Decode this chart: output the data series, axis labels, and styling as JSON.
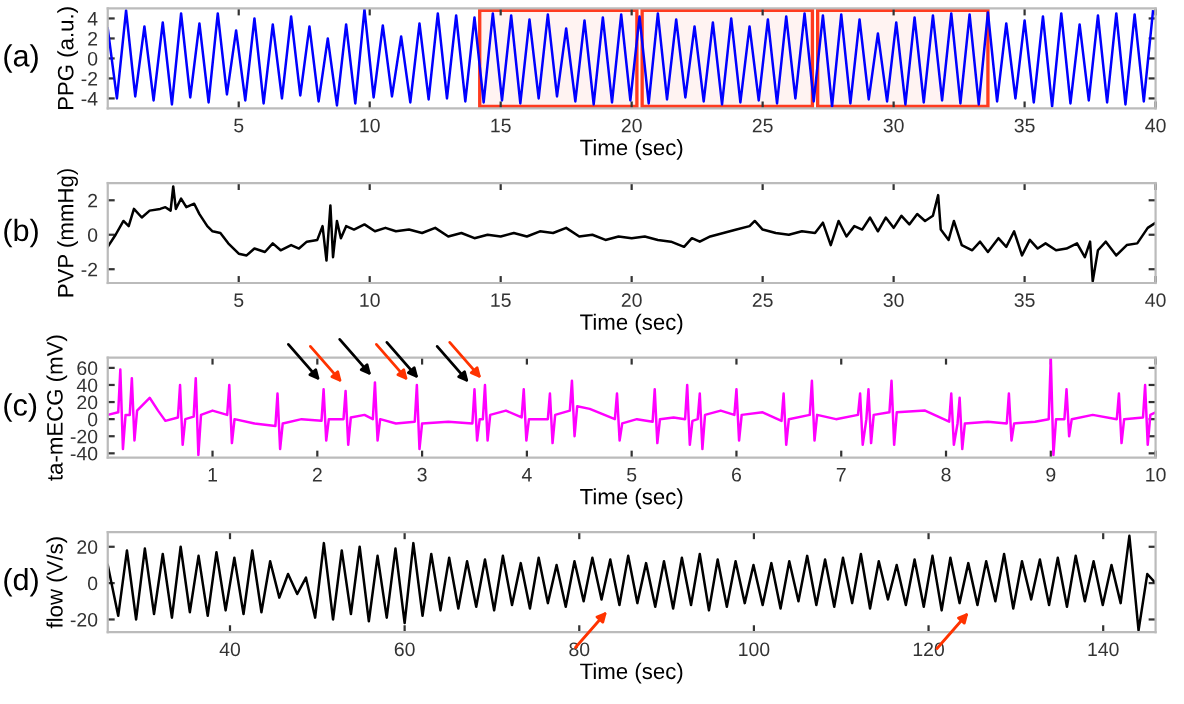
{
  "chart_data": [
    {
      "type": "line",
      "xlabel": "Time (sec)",
      "ylabel": "PPG (a.u.)",
      "xlim": [
        0,
        40
      ],
      "ylim": [
        -5,
        5
      ],
      "xticks": [
        5,
        10,
        15,
        20,
        25,
        30,
        35,
        40
      ],
      "yticks": [
        -4,
        -2,
        0,
        2,
        4
      ],
      "annotations": [
        "(a)"
      ],
      "bands": [
        {
          "axis": "x",
          "from": 14.2,
          "to": 20.2,
          "color": "#ff3b1f"
        },
        {
          "axis": "x",
          "from": 20.4,
          "to": 26.9,
          "color": "#ff3b1f"
        },
        {
          "axis": "x",
          "from": 27.1,
          "to": 33.6,
          "color": "#ff3b1f"
        }
      ],
      "series": [
        {
          "color": "#0000ff",
          "x": [
            0,
            0.35,
            0.7,
            1.05,
            1.4,
            1.75,
            2.1,
            2.45,
            2.8,
            3.15,
            3.5,
            3.85,
            4.2,
            4.55,
            4.9,
            5.25,
            5.6,
            5.95,
            6.3,
            6.65,
            7,
            7.35,
            7.7,
            8.05,
            8.4,
            8.75,
            9.1,
            9.45,
            9.8,
            10.15,
            10.5,
            10.85,
            11.2,
            11.55,
            11.9,
            12.25,
            12.6,
            12.95,
            13.3,
            13.65,
            14,
            14.35,
            14.7,
            15.05,
            15.4,
            15.75,
            16.1,
            16.45,
            16.8,
            17.15,
            17.5,
            17.85,
            18.2,
            18.55,
            18.9,
            19.25,
            19.6,
            19.95,
            20.3,
            20.65,
            21,
            21.35,
            21.7,
            22.05,
            22.4,
            22.75,
            23.1,
            23.45,
            23.8,
            24.15,
            24.5,
            24.85,
            25.2,
            25.55,
            25.9,
            26.25,
            26.6,
            26.95,
            27.3,
            27.65,
            28,
            28.35,
            28.7,
            29.05,
            29.4,
            29.75,
            30.1,
            30.45,
            30.8,
            31.15,
            31.5,
            31.85,
            32.2,
            32.55,
            32.9,
            33.25,
            33.6,
            33.95,
            34.3,
            34.65,
            35,
            35.35,
            35.7,
            36.05,
            36.4,
            36.75,
            37.1,
            37.45,
            37.8,
            38.15,
            38.5,
            38.85,
            39.2,
            39.55,
            39.9
          ],
          "values": [
            3,
            -4,
            4.8,
            -3.8,
            3.2,
            -4.2,
            3.6,
            -4.6,
            4.5,
            -3.9,
            3.5,
            -4.4,
            4.5,
            -3.6,
            2.8,
            -4.2,
            4.0,
            -4.5,
            3.4,
            -4.0,
            4.2,
            -3.7,
            3.2,
            -4.3,
            2.0,
            -4.7,
            3.4,
            -4.5,
            4.9,
            -3.9,
            3.3,
            -3.8,
            2.2,
            -4.4,
            3.5,
            -4.1,
            4.5,
            -4.0,
            4.3,
            -4.3,
            4.1,
            -4.4,
            4.5,
            -4.2,
            4.3,
            -4.5,
            3.9,
            -4.0,
            4.4,
            -3.8,
            3.0,
            -4.3,
            3.8,
            -4.6,
            4.1,
            -4.4,
            4.4,
            -4.2,
            4.2,
            -4.5,
            4.5,
            -4.1,
            3.9,
            -3.9,
            3.2,
            -4.3,
            3.6,
            -4.6,
            4.0,
            -4.4,
            3.2,
            -4.2,
            3.9,
            -4.5,
            4.2,
            -4.0,
            4.5,
            -4.3,
            4.3,
            -4.8,
            4.4,
            -4.5,
            3.9,
            -4.1,
            2.5,
            -4.3,
            3.6,
            -4.6,
            4.1,
            -4.4,
            4.3,
            -4.2,
            4.5,
            -4.5,
            4.4,
            -4.6,
            4.6,
            -4.3,
            3.5,
            -4.0,
            3.8,
            -4.4,
            4.2,
            -4.8,
            4.5,
            -4.5,
            3.4,
            -4.2,
            4.3,
            -4.4,
            4.5,
            -4.6,
            4.4,
            -4.3,
            4.7
          ]
        }
      ]
    },
    {
      "type": "line",
      "xlabel": "Time (sec)",
      "ylabel": "PVP (mmHg)",
      "xlim": [
        0,
        40
      ],
      "ylim": [
        -2.8,
        3
      ],
      "xticks": [
        5,
        10,
        15,
        20,
        25,
        30,
        35,
        40
      ],
      "yticks": [
        -2,
        0,
        2
      ],
      "annotations": [
        "(b)"
      ],
      "series": [
        {
          "color": "#000000",
          "x": [
            0,
            0.3,
            0.6,
            0.8,
            1,
            1.3,
            1.6,
            2,
            2.2,
            2.4,
            2.5,
            2.6,
            2.8,
            3.0,
            3.3,
            3.5,
            3.8,
            4,
            4.3,
            4.6,
            5,
            5.3,
            5.6,
            6,
            6.3,
            6.6,
            7,
            7.3,
            7.6,
            8,
            8.2,
            8.35,
            8.5,
            8.6,
            8.75,
            8.9,
            9.1,
            9.4,
            9.8,
            10.2,
            10.6,
            11,
            11.5,
            12,
            12.5,
            13,
            13.5,
            14,
            14.5,
            15,
            15.5,
            16,
            16.5,
            17,
            17.5,
            18,
            18.5,
            19,
            19.5,
            20,
            20.5,
            21,
            21.5,
            22,
            22.3,
            22.6,
            23,
            23.5,
            24,
            24.5,
            24.7,
            25,
            25.5,
            26,
            26.5,
            27,
            27.3,
            27.6,
            27.9,
            28.2,
            28.5,
            28.8,
            29.1,
            29.4,
            29.7,
            30,
            30.3,
            30.6,
            30.9,
            31.2,
            31.5,
            31.7,
            31.8,
            32.1,
            32.3,
            32.6,
            33,
            33.3,
            33.6,
            34,
            34.3,
            34.6,
            34.9,
            35.2,
            35.5,
            35.8,
            36.2,
            36.6,
            37,
            37.3,
            37.5,
            37.6,
            37.8,
            38.1,
            38.5,
            38.9,
            39.3,
            39.7,
            40
          ],
          "values": [
            -0.7,
            0,
            0.8,
            0.5,
            1.5,
            1.0,
            1.4,
            1.5,
            1.6,
            1.4,
            2.8,
            1.5,
            2.1,
            1.6,
            1.8,
            1.2,
            0.5,
            0.2,
            0.1,
            -0.5,
            -1.1,
            -1.2,
            -0.8,
            -1.0,
            -0.5,
            -0.9,
            -0.6,
            -0.8,
            -0.4,
            -0.3,
            0.5,
            -1.5,
            1.7,
            -1.3,
            0.8,
            -0.2,
            0.5,
            0.3,
            0.6,
            0.2,
            0.4,
            0.2,
            0.3,
            0.1,
            0.4,
            -0.1,
            0.1,
            -0.2,
            0,
            -0.1,
            0.1,
            -0.1,
            0.2,
            0.1,
            0.4,
            -0.1,
            0.0,
            -0.3,
            -0.1,
            -0.2,
            -0.1,
            -0.3,
            -0.4,
            -0.7,
            -0.2,
            -0.4,
            -0.1,
            0.1,
            0.3,
            0.5,
            0.8,
            0.3,
            0.1,
            0,
            0.2,
            0.1,
            0.7,
            -0.6,
            0.8,
            -0.1,
            0.5,
            0.3,
            1.0,
            0.2,
            1.0,
            0.4,
            1.1,
            0.6,
            1.2,
            0.8,
            1.1,
            2.3,
            0.3,
            -0.3,
            0.8,
            -0.6,
            -0.9,
            -0.4,
            -1.0,
            -0.2,
            -0.7,
            0.2,
            -1.2,
            -0.3,
            -0.8,
            -0.5,
            -0.9,
            -0.8,
            -0.5,
            -1.3,
            -0.4,
            -2.7,
            -0.9,
            -0.4,
            -1.2,
            -0.6,
            -0.5,
            0.4,
            0.7
          ]
        }
      ]
    },
    {
      "type": "line",
      "xlabel": "Time (sec)",
      "ylabel": "ta-mECG (mV)",
      "xlim": [
        0,
        10
      ],
      "ylim": [
        -45,
        72
      ],
      "xticks": [
        1,
        2,
        3,
        4,
        5,
        6,
        7,
        8,
        9,
        10
      ],
      "yticks": [
        -40,
        -20,
        0,
        20,
        40,
        60
      ],
      "annotations": [
        "(c)"
      ],
      "series": [
        {
          "color": "#ff00ff",
          "x": [
            0,
            0.1,
            0.12,
            0.145,
            0.17,
            0.21,
            0.23,
            0.255,
            0.28,
            0.4,
            0.48,
            0.55,
            0.67,
            0.69,
            0.715,
            0.74,
            0.82,
            0.84,
            0.865,
            0.89,
            1.0,
            1.14,
            1.16,
            1.185,
            1.21,
            1.4,
            1.6,
            1.62,
            1.645,
            1.67,
            1.85,
            2.04,
            2.06,
            2.085,
            2.11,
            2.25,
            2.27,
            2.295,
            2.32,
            2.45,
            2.53,
            2.55,
            2.575,
            2.6,
            2.75,
            2.93,
            2.95,
            2.975,
            3.0,
            3.25,
            3.48,
            3.5,
            3.525,
            3.55,
            3.58,
            3.6,
            3.625,
            3.65,
            3.8,
            3.95,
            3.97,
            3.995,
            4.02,
            4.2,
            4.22,
            4.245,
            4.27,
            4.41,
            4.43,
            4.455,
            4.48,
            4.6,
            4.84,
            4.86,
            4.885,
            4.91,
            5.05,
            5.2,
            5.22,
            5.245,
            5.27,
            5.4,
            5.51,
            5.53,
            5.555,
            5.58,
            5.63,
            5.65,
            5.675,
            5.7,
            5.85,
            5.98,
            6.0,
            6.025,
            6.05,
            6.25,
            6.43,
            6.45,
            6.475,
            6.5,
            6.7,
            6.72,
            6.745,
            6.77,
            6.95,
            7.16,
            7.18,
            7.205,
            7.24,
            7.26,
            7.285,
            7.31,
            7.46,
            7.48,
            7.505,
            7.53,
            7.8,
            8.03,
            8.05,
            8.075,
            8.11,
            8.13,
            8.155,
            8.18,
            8.4,
            8.58,
            8.6,
            8.625,
            8.65,
            8.85,
            8.98,
            9.0,
            9.025,
            9.05,
            9.13,
            9.15,
            9.175,
            9.2,
            9.4,
            9.63,
            9.65,
            9.675,
            9.7,
            9.88,
            9.9,
            9.925,
            9.95,
            10
          ],
          "values": [
            5,
            8,
            58,
            -35,
            5,
            5,
            48,
            -25,
            10,
            25,
            10,
            -2,
            2,
            40,
            -30,
            0,
            3,
            48,
            -42,
            5,
            10,
            5,
            40,
            -28,
            0,
            -5,
            -8,
            30,
            -35,
            -5,
            0,
            -2,
            35,
            -25,
            0,
            0,
            33,
            -30,
            2,
            5,
            0,
            43,
            -25,
            0,
            -5,
            -3,
            40,
            -35,
            -5,
            -3,
            -5,
            35,
            -25,
            0,
            0,
            40,
            -25,
            5,
            10,
            2,
            35,
            -25,
            0,
            0,
            30,
            -28,
            5,
            10,
            45,
            -20,
            15,
            12,
            0,
            30,
            -25,
            -5,
            0,
            -3,
            35,
            -28,
            0,
            2,
            0,
            40,
            -30,
            -2,
            0,
            30,
            -35,
            5,
            10,
            5,
            35,
            -25,
            5,
            8,
            -2,
            30,
            -30,
            0,
            5,
            45,
            -25,
            5,
            0,
            5,
            30,
            -30,
            0,
            35,
            -28,
            5,
            8,
            45,
            -30,
            8,
            10,
            -3,
            30,
            -30,
            -5,
            25,
            -35,
            -5,
            -3,
            -5,
            30,
            -25,
            -5,
            -3,
            0,
            72,
            -42,
            0,
            0,
            35,
            -20,
            0,
            5,
            0,
            30,
            -28,
            0,
            2,
            40,
            -30,
            5,
            8
          ]
        }
      ]
    },
    {
      "type": "line",
      "xlabel": "Time (sec)",
      "ylabel": "flow (V/s)",
      "xlim": [
        26,
        146
      ],
      "ylim": [
        -27,
        28
      ],
      "xticks": [
        40,
        60,
        80,
        100,
        120,
        140
      ],
      "yticks": [
        -20,
        0,
        20
      ],
      "annotations": [
        "(d)"
      ],
      "series": [
        {
          "color": "#000000",
          "x": [
            26,
            27.2,
            28.2,
            29.25,
            30.25,
            31.3,
            32.3,
            33.35,
            34.35,
            35.4,
            36.4,
            37.45,
            38.45,
            39.5,
            40.5,
            41.55,
            42.55,
            43.6,
            44.6,
            45.65,
            46.65,
            47.7,
            48.7,
            49.75,
            50.75,
            51.8,
            52.8,
            53.85,
            54.85,
            55.9,
            56.9,
            57.95,
            58.95,
            60,
            61,
            62.05,
            63.05,
            64.1,
            65.1,
            66.15,
            67.15,
            68.2,
            69.2,
            70.25,
            71.25,
            72.3,
            73.3,
            74.35,
            75.35,
            76.4,
            77.4,
            78.45,
            79.45,
            80.5,
            81.5,
            82.55,
            83.55,
            84.6,
            85.6,
            86.65,
            87.65,
            88.7,
            89.7,
            90.75,
            91.75,
            92.8,
            93.8,
            94.85,
            95.85,
            96.9,
            97.9,
            98.95,
            99.95,
            101,
            102,
            103.05,
            104.05,
            105.1,
            106.1,
            107.15,
            108.15,
            109.2,
            110.2,
            111.25,
            112.25,
            113.3,
            114.3,
            115.35,
            116.35,
            117.4,
            118.4,
            119.45,
            120.45,
            121.5,
            122.5,
            123.55,
            124.55,
            125.6,
            126.6,
            127.65,
            128.65,
            129.7,
            130.7,
            131.75,
            132.75,
            133.8,
            134.8,
            135.85,
            136.85,
            137.9,
            138.9,
            139.95,
            140.95,
            142,
            143,
            144.05,
            145.05,
            146
          ],
          "values": [
            10,
            -18,
            18,
            -20,
            19,
            -17,
            16,
            -19,
            20,
            -16,
            15,
            -18,
            17,
            -15,
            14,
            -17,
            18,
            -16,
            12,
            -8,
            5,
            -6,
            3,
            -19,
            22,
            -20,
            18,
            -17,
            20,
            -21,
            15,
            -19,
            19,
            -22,
            22,
            -18,
            16,
            -15,
            14,
            -14,
            12,
            -13,
            13,
            -15,
            15,
            -12,
            11,
            -14,
            14,
            -11,
            10,
            -13,
            12,
            -10,
            14,
            -9,
            13,
            -12,
            15,
            -11,
            11,
            -13,
            12,
            -14,
            14,
            -12,
            16,
            -15,
            13,
            -13,
            12,
            -11,
            10,
            -12,
            11,
            -14,
            12,
            -10,
            15,
            -12,
            13,
            -13,
            14,
            -11,
            16,
            -14,
            12,
            -9,
            10,
            -12,
            13,
            -13,
            15,
            -15,
            14,
            -11,
            11,
            -12,
            12,
            -10,
            16,
            -14,
            12,
            -9,
            13,
            -12,
            14,
            -13,
            15,
            -10,
            12,
            -12,
            10,
            -11,
            26,
            -26,
            5,
            0
          ]
        }
      ]
    }
  ]
}
